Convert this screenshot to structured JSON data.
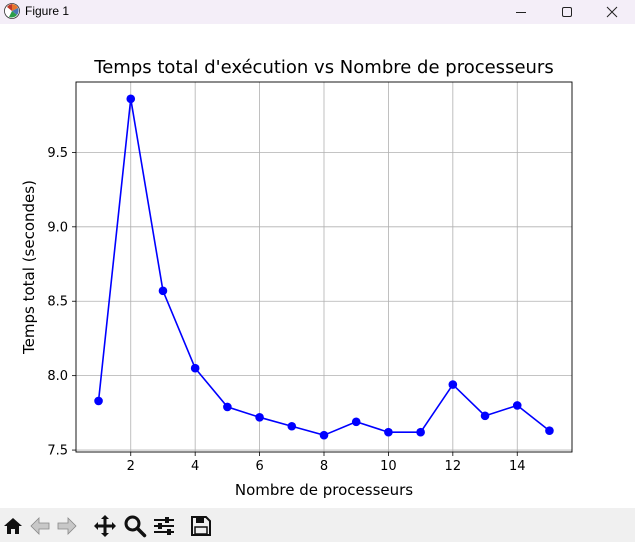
{
  "window": {
    "title": "Figure 1",
    "icons": [
      "matplotlib-logo-icon",
      "minimize-icon",
      "maximize-icon",
      "close-icon"
    ]
  },
  "toolbar": {
    "buttons": [
      "home-icon",
      "back-icon",
      "forward-icon",
      "pan-icon",
      "zoom-icon",
      "configure-subplots-icon",
      "save-icon"
    ]
  },
  "chart_data": {
    "type": "line",
    "title": "Temps total d'exécution vs Nombre de processeurs",
    "xlabel": "Nombre de processeurs",
    "ylabel": "Temps total (secondes)",
    "x": [
      1,
      2,
      3,
      4,
      5,
      6,
      7,
      8,
      9,
      10,
      11,
      12,
      13,
      14,
      15
    ],
    "y": [
      7.83,
      9.86,
      8.57,
      8.05,
      7.79,
      7.72,
      7.66,
      7.6,
      7.69,
      7.62,
      7.62,
      7.94,
      7.73,
      7.8,
      7.63
    ],
    "xlim": [
      0.3,
      15.7
    ],
    "ylim": [
      7.487,
      9.973
    ],
    "xticks": [
      2,
      4,
      6,
      8,
      10,
      12,
      14
    ],
    "xtick_labels": [
      "2",
      "4",
      "6",
      "8",
      "10",
      "12",
      "14"
    ],
    "yticks": [
      7.5,
      8.0,
      8.5,
      9.0,
      9.5
    ],
    "ytick_labels": [
      "7.5",
      "8.0",
      "8.5",
      "9.0",
      "9.5"
    ],
    "grid": true,
    "line_color": "#0000ff",
    "marker": "circle"
  }
}
